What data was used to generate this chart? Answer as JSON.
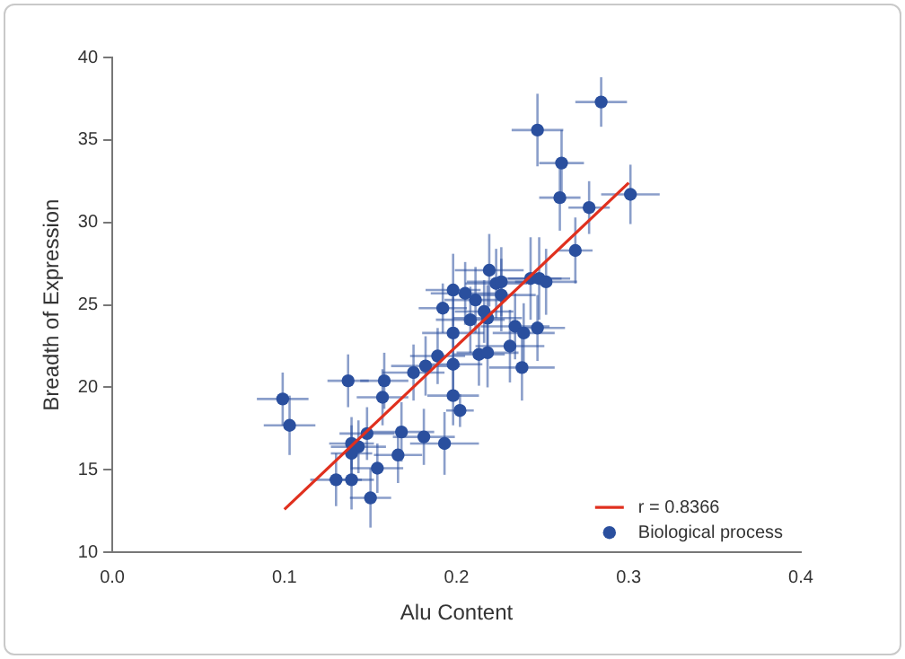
{
  "chart_data": {
    "type": "scatter",
    "xlabel": "Alu Content",
    "ylabel": "Breadth of Expression",
    "xlim": [
      0,
      0.4
    ],
    "xticks": [
      {
        "value": 0,
        "label": "0.0"
      },
      {
        "value": 0.1,
        "label": "0.1"
      },
      {
        "value": 0.2,
        "label": "0.2"
      },
      {
        "value": 0.3,
        "label": "0.3"
      },
      {
        "value": 0.4,
        "label": "0.4"
      }
    ],
    "ylim": [
      10,
      40
    ],
    "yticks": [
      10,
      15,
      20,
      25,
      30,
      35,
      40
    ],
    "grid": false,
    "legend": "bottom right",
    "marker": "circle",
    "series": [
      {
        "name": "r = 0.8366",
        "color": "#e0301e",
        "type": "line",
        "marker": "none",
        "x": [
          0.1,
          0.3
        ],
        "values": [
          12.6,
          32.4
        ]
      },
      {
        "name": "Biological process",
        "color": "#2a4f9e",
        "x": [
          0.099,
          0.103,
          0.137,
          0.158,
          0.157,
          0.175,
          0.182,
          0.189,
          0.198,
          0.198,
          0.198,
          0.202,
          0.213,
          0.218,
          0.231,
          0.139,
          0.143,
          0.139,
          0.148,
          0.168,
          0.181,
          0.193,
          0.166,
          0.154,
          0.13,
          0.139,
          0.15,
          0.192,
          0.198,
          0.205,
          0.211,
          0.208,
          0.216,
          0.218,
          0.219,
          0.223,
          0.226,
          0.226,
          0.234,
          0.239,
          0.238,
          0.243,
          0.248,
          0.252,
          0.247,
          0.284,
          0.247,
          0.261,
          0.26,
          0.277,
          0.301,
          0.269
        ],
        "values": [
          19.3,
          17.7,
          20.4,
          20.4,
          19.4,
          20.9,
          21.3,
          21.9,
          23.3,
          21.4,
          19.5,
          18.6,
          22.0,
          22.1,
          22.5,
          16.6,
          16.4,
          16.0,
          17.2,
          17.3,
          17.0,
          16.6,
          15.9,
          15.1,
          14.4,
          14.4,
          13.3,
          24.8,
          25.9,
          25.7,
          25.3,
          24.1,
          24.6,
          24.2,
          27.1,
          26.3,
          26.4,
          25.6,
          23.7,
          23.3,
          21.2,
          26.6,
          26.6,
          26.4,
          23.6,
          37.3,
          35.6,
          33.6,
          31.5,
          30.9,
          31.7,
          28.3
        ],
        "errors": [
          1.6,
          1.8,
          1.6,
          1.7,
          1.7,
          1.7,
          1.8,
          1.7,
          2.2,
          1.9,
          1.8,
          1.0,
          1.9,
          2.1,
          2.2,
          1.6,
          1.6,
          1.7,
          1.6,
          1.8,
          1.7,
          1.9,
          1.7,
          1.5,
          1.6,
          1.8,
          1.8,
          1.5,
          2.2,
          1.9,
          2.0,
          2.0,
          1.9,
          2.0,
          2.2,
          2.1,
          2.1,
          2.2,
          2.0,
          1.8,
          2.0,
          2.5,
          2.5,
          2.0,
          2.0,
          1.5,
          2.2,
          2.0,
          2.0,
          1.6,
          1.8,
          2.0
        ],
        "xerrors": [
          0.015,
          0.015,
          0.012,
          0.014,
          0.015,
          0.018,
          0.02,
          0.016,
          0.018,
          0.017,
          0.015,
          0.008,
          0.015,
          0.018,
          0.02,
          0.013,
          0.016,
          0.012,
          0.016,
          0.019,
          0.018,
          0.02,
          0.014,
          0.015,
          0.015,
          0.013,
          0.012,
          0.014,
          0.016,
          0.02,
          0.018,
          0.02,
          0.017,
          0.02,
          0.02,
          0.018,
          0.02,
          0.02,
          0.02,
          0.018,
          0.019,
          0.018,
          0.018,
          0.018,
          0.016,
          0.015,
          0.015,
          0.013,
          0.012,
          0.012,
          0.017,
          0.01
        ]
      }
    ]
  }
}
